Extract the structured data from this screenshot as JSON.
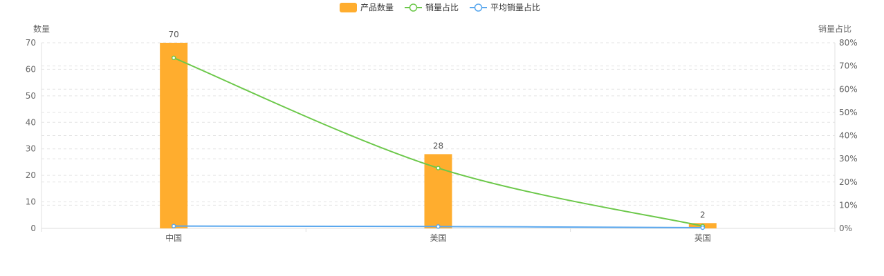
{
  "chart_data": {
    "type": "bar",
    "categories": [
      "中国",
      "美国",
      "英国"
    ],
    "legend": {
      "placement": "top-center",
      "items": [
        {
          "label": "产品数量",
          "marker": "bar",
          "color": "#FFAD2E"
        },
        {
          "label": "销量占比",
          "marker": "line",
          "color": "#6CC84A"
        },
        {
          "label": "平均销量占比",
          "marker": "line",
          "color": "#5AA8EE"
        }
      ]
    },
    "y_left": {
      "label": "数量",
      "range": [
        0,
        70
      ],
      "ticks": [
        "0",
        "10",
        "20",
        "30",
        "40",
        "50",
        "60",
        "70"
      ]
    },
    "y_right": {
      "label": "销量占比",
      "range": [
        0,
        80
      ],
      "ticks": [
        "0%",
        "10%",
        "20%",
        "30%",
        "40%",
        "50%",
        "60%",
        "70%",
        "80%"
      ]
    },
    "grid": true,
    "series": [
      {
        "name": "产品数量",
        "type": "bar",
        "axis": "left",
        "color": "#FFAD2E",
        "values": [
          70,
          28,
          2
        ],
        "labels": [
          "70",
          "28",
          "2"
        ]
      },
      {
        "name": "销量占比",
        "type": "line",
        "axis": "right",
        "color": "#6CC84A",
        "values": [
          73.5,
          26,
          1
        ]
      },
      {
        "name": "平均销量占比",
        "type": "line",
        "axis": "right",
        "color": "#5AA8EE",
        "values": [
          1,
          0.8,
          0.3
        ]
      }
    ]
  }
}
